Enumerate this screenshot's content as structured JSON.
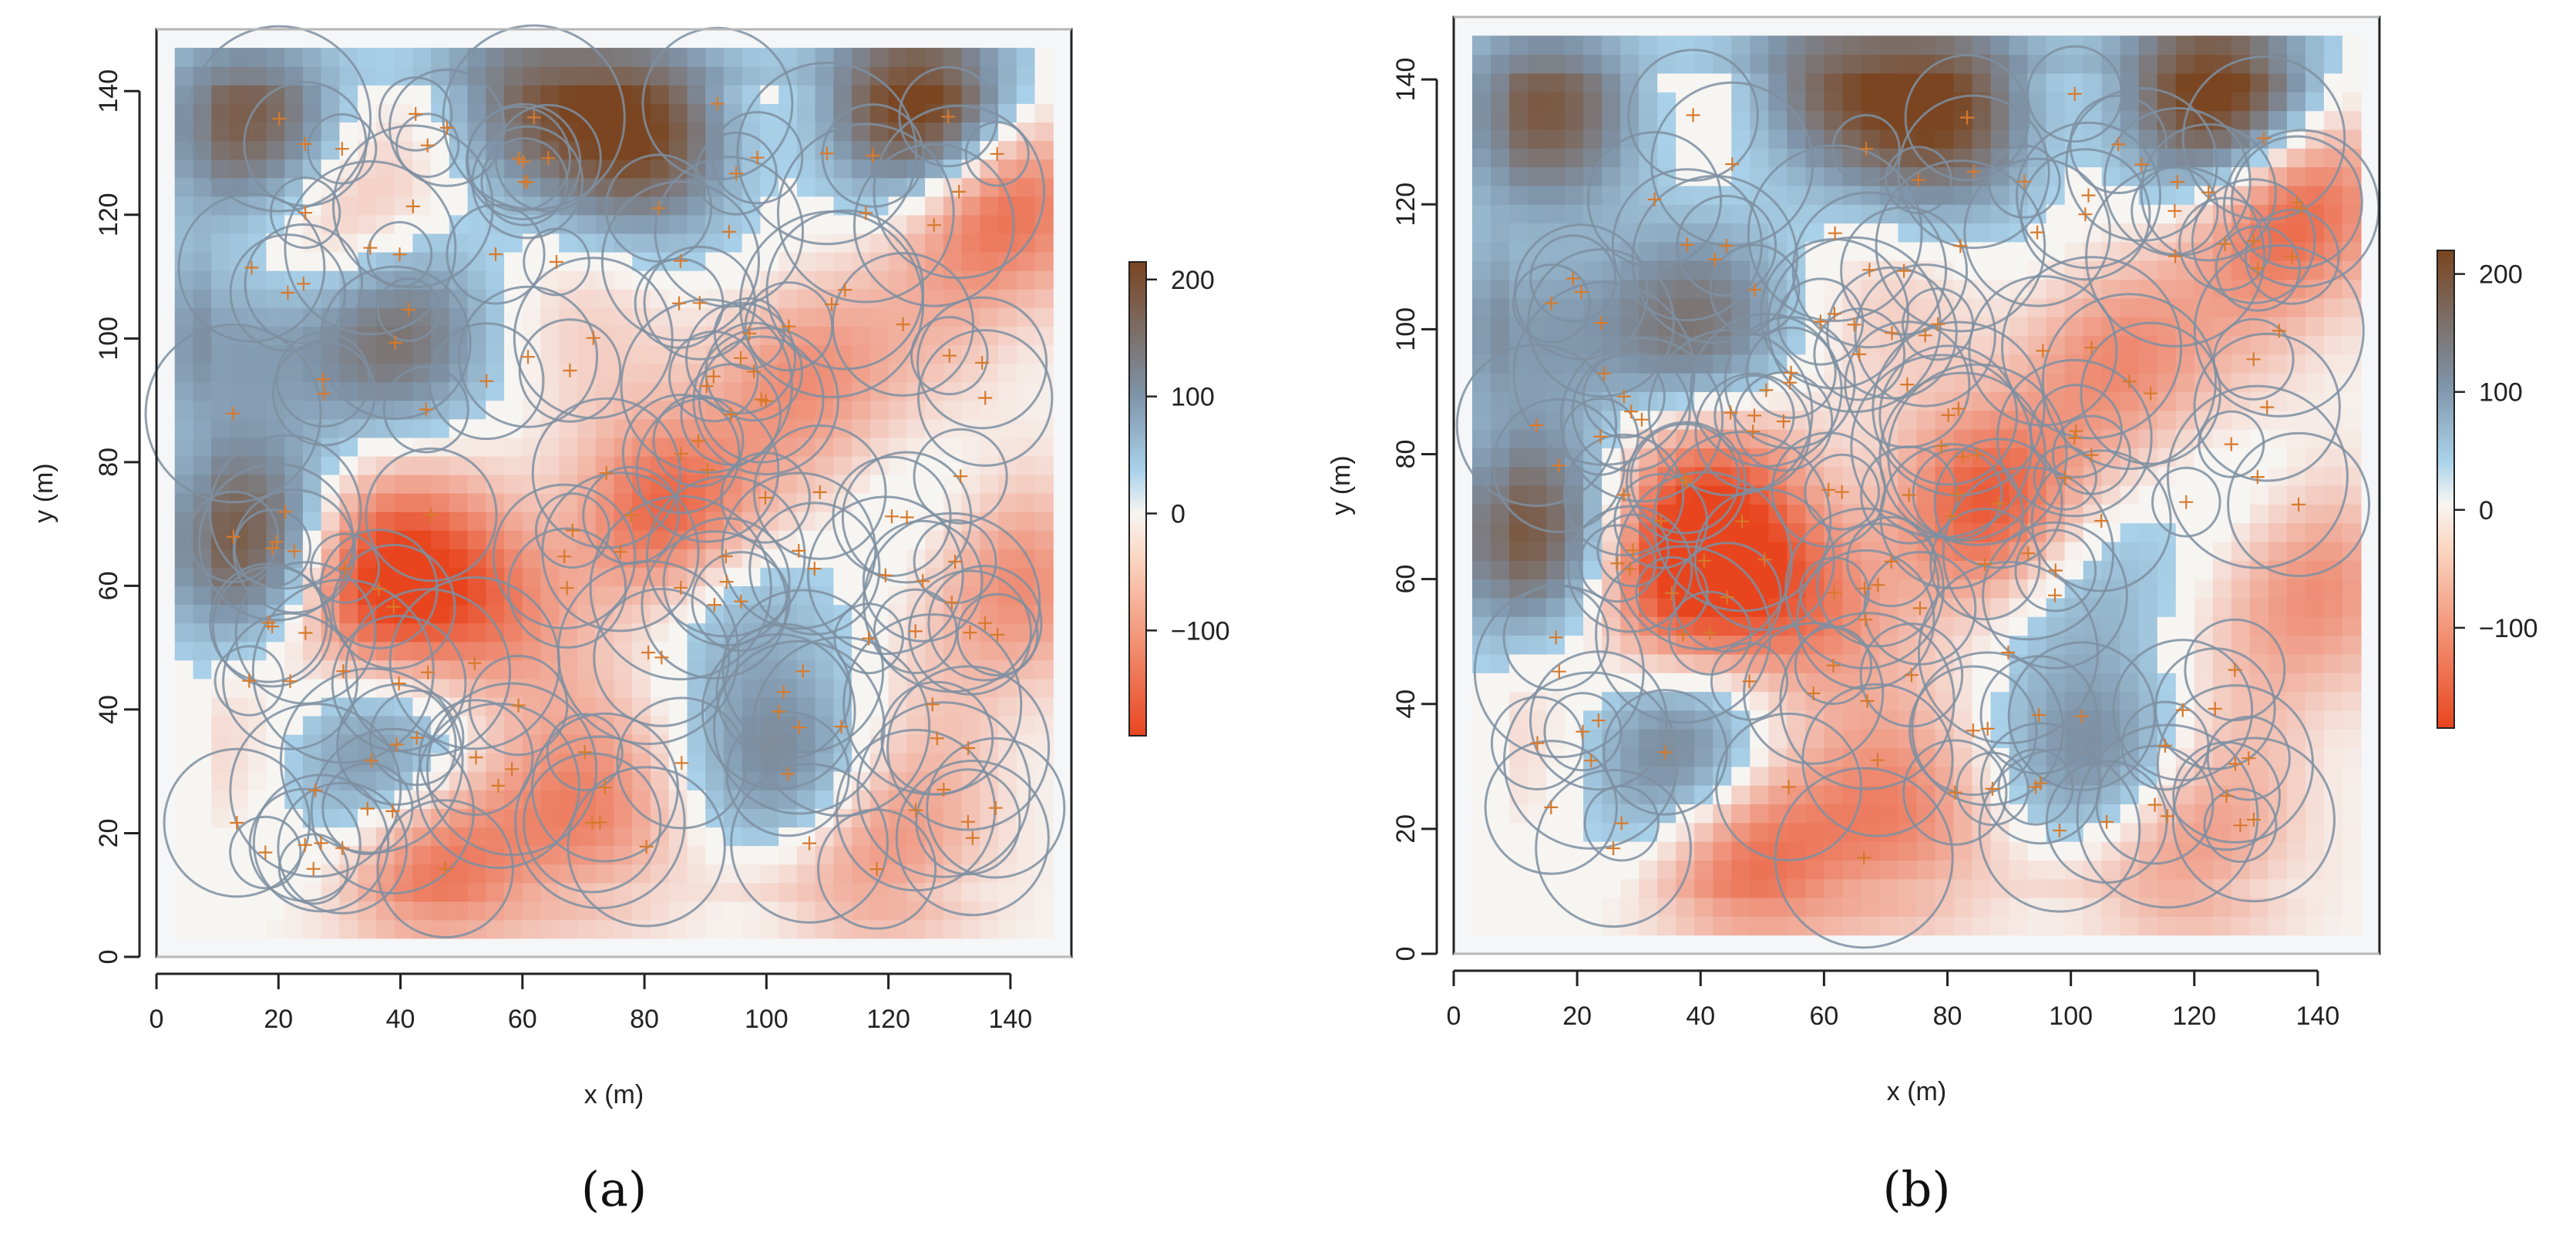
{
  "chart_data": [
    {
      "type": "heatmap",
      "panel_label": "(a)",
      "xlabel": "x (m)",
      "ylabel": "y (m)",
      "xlim": [
        0,
        150
      ],
      "ylim": [
        0,
        150
      ],
      "x_ticks": [
        0,
        20,
        40,
        60,
        80,
        100,
        120,
        140
      ],
      "y_ticks": [
        0,
        20,
        40,
        60,
        80,
        100,
        120,
        140
      ],
      "grid": false,
      "colorbar": {
        "ticks": [
          200,
          100,
          0,
          -100
        ],
        "range": [
          -190,
          215
        ],
        "placement": "right"
      },
      "color_scale": {
        "negative": "#e8451e",
        "zero": "#f7f5f2",
        "low_positive": "#a9d2ea",
        "mid_positive": "#7e93a8",
        "high_positive": "#7a4520"
      },
      "hotspots": [
        {
          "x": 36,
          "y": 61,
          "value": -180
        },
        {
          "x": 83,
          "y": 71,
          "value": -170
        },
        {
          "x": 45,
          "y": 17,
          "value": -130
        },
        {
          "x": 55,
          "y": 57,
          "value": -100
        },
        {
          "x": 105,
          "y": 95,
          "value": -110
        },
        {
          "x": 138,
          "y": 122,
          "value": -150
        },
        {
          "x": 140,
          "y": 60,
          "value": -100
        },
        {
          "x": 118,
          "y": 18,
          "value": -100
        },
        {
          "x": 30,
          "y": 118,
          "value": -70
        },
        {
          "x": 70,
          "y": 22,
          "value": -90
        },
        {
          "x": 125,
          "y": 138,
          "value": 215
        },
        {
          "x": 80,
          "y": 133,
          "value": 190
        },
        {
          "x": 15,
          "y": 67,
          "value": 160
        },
        {
          "x": 15,
          "y": 135,
          "value": 150
        },
        {
          "x": 38,
          "y": 100,
          "value": 120
        },
        {
          "x": 60,
          "y": 140,
          "value": 120
        },
        {
          "x": 35,
          "y": 30,
          "value": 100
        },
        {
          "x": 95,
          "y": 60,
          "value": 90
        },
        {
          "x": 105,
          "y": 30,
          "value": 90
        },
        {
          "x": 12,
          "y": 100,
          "value": 100
        }
      ],
      "points": {
        "count": 150,
        "marker": "+",
        "color": "#d77a2c",
        "circle_color": "#7e8fa1",
        "radius_range_m": [
          5,
          15
        ]
      }
    },
    {
      "type": "heatmap",
      "panel_label": "(b)",
      "xlabel": "x (m)",
      "ylabel": "y (m)",
      "xlim": [
        0,
        150
      ],
      "ylim": [
        0,
        150
      ],
      "x_ticks": [
        0,
        20,
        40,
        60,
        80,
        100,
        120,
        140
      ],
      "y_ticks": [
        0,
        20,
        40,
        60,
        80,
        100,
        120,
        140
      ],
      "grid": false,
      "colorbar": {
        "ticks": [
          200,
          100,
          0,
          -100
        ],
        "range": [
          -185,
          220
        ],
        "placement": "right"
      },
      "color_scale": {
        "negative": "#e8451e",
        "zero": "#f7f5f2",
        "low_positive": "#a9d2ea",
        "mid_positive": "#7e93a8",
        "high_positive": "#7a4520"
      },
      "hotspots": [
        {
          "x": 37,
          "y": 61,
          "value": -180
        },
        {
          "x": 86,
          "y": 71,
          "value": -175
        },
        {
          "x": 48,
          "y": 17,
          "value": -130
        },
        {
          "x": 57,
          "y": 57,
          "value": -110
        },
        {
          "x": 106,
          "y": 96,
          "value": -115
        },
        {
          "x": 136,
          "y": 120,
          "value": -150
        },
        {
          "x": 138,
          "y": 58,
          "value": -100
        },
        {
          "x": 118,
          "y": 18,
          "value": -100
        },
        {
          "x": 42,
          "y": 78,
          "value": -80
        },
        {
          "x": 72,
          "y": 20,
          "value": -90
        },
        {
          "x": 123,
          "y": 138,
          "value": 220
        },
        {
          "x": 80,
          "y": 135,
          "value": 185
        },
        {
          "x": 12,
          "y": 67,
          "value": 160
        },
        {
          "x": 15,
          "y": 135,
          "value": 150
        },
        {
          "x": 38,
          "y": 100,
          "value": 115
        },
        {
          "x": 60,
          "y": 140,
          "value": 120
        },
        {
          "x": 35,
          "y": 31,
          "value": 110
        },
        {
          "x": 100,
          "y": 62,
          "value": 90
        },
        {
          "x": 107,
          "y": 30,
          "value": 90
        },
        {
          "x": 12,
          "y": 100,
          "value": 100
        }
      ],
      "points": {
        "count": 150,
        "marker": "+",
        "color": "#d77a2c",
        "circle_color": "#7e8fa1",
        "radius_range_m": [
          5,
          15
        ]
      }
    }
  ]
}
